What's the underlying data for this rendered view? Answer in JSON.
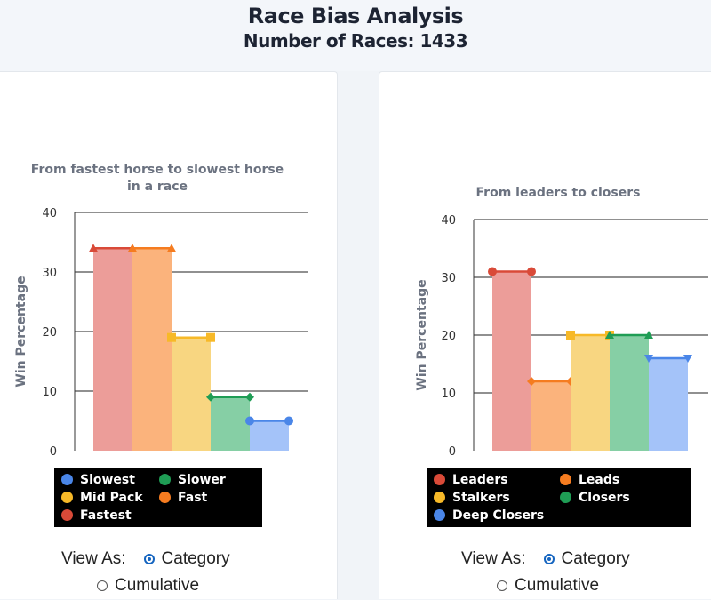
{
  "header": {
    "title": "Race Bias Analysis",
    "subtitle": "Number of Races: 1433"
  },
  "view_as": {
    "label": "View As:",
    "options": [
      "Category",
      "Cumulative"
    ],
    "selected": "Category"
  },
  "chart_data": [
    {
      "type": "bar",
      "title_lines": [
        "From fastest horse to slowest horse",
        "in a race"
      ],
      "ylabel": "Win Percentage",
      "ylim": [
        0,
        40
      ],
      "yticks": [
        0,
        10,
        20,
        30,
        40
      ],
      "grid": true,
      "legend_placement": "bottom",
      "categories": [
        "Fastest",
        "Fast",
        "Mid Pack",
        "Slower",
        "Slowest"
      ],
      "values": [
        34,
        34,
        19,
        9,
        5
      ],
      "bar_colors": [
        "#ec9d99",
        "#fbb37c",
        "#f8d681",
        "#86cfa5",
        "#a4c3f9"
      ],
      "marker_colors": [
        "#d94a38",
        "#f57c20",
        "#f7b928",
        "#1f9d55",
        "#4a86e8"
      ],
      "markers": [
        "triangle",
        "triangle",
        "square",
        "diamond",
        "circle"
      ],
      "legend": [
        {
          "label": "Slowest",
          "color": "#4a86e8"
        },
        {
          "label": "Slower",
          "color": "#1f9d55"
        },
        {
          "label": "Mid Pack",
          "color": "#f7b928"
        },
        {
          "label": "Fast",
          "color": "#f57c20"
        },
        {
          "label": "Fastest",
          "color": "#d94a38"
        }
      ]
    },
    {
      "type": "bar",
      "title_lines": [
        "From leaders to closers"
      ],
      "ylabel": "Win Percentage",
      "ylim": [
        0,
        40
      ],
      "yticks": [
        0,
        10,
        20,
        30,
        40
      ],
      "grid": true,
      "legend_placement": "bottom",
      "categories": [
        "Leaders",
        "Leads",
        "Stalkers",
        "Closers",
        "Deep Closers"
      ],
      "values": [
        31,
        12,
        20,
        20,
        16
      ],
      "bar_colors": [
        "#ec9d99",
        "#fbb37c",
        "#f8d681",
        "#86cfa5",
        "#a4c3f9"
      ],
      "marker_colors": [
        "#d94a38",
        "#f57c20",
        "#f7b928",
        "#1f9d55",
        "#4a86e8"
      ],
      "markers": [
        "circle",
        "diamond",
        "square",
        "triangle",
        "triangle-down"
      ],
      "legend": [
        {
          "label": "Leaders",
          "color": "#d94a38"
        },
        {
          "label": "Leads",
          "color": "#f57c20"
        },
        {
          "label": "Stalkers",
          "color": "#f7b928"
        },
        {
          "label": "Closers",
          "color": "#1f9d55"
        },
        {
          "label": "Deep Closers",
          "color": "#4a86e8"
        }
      ]
    }
  ]
}
